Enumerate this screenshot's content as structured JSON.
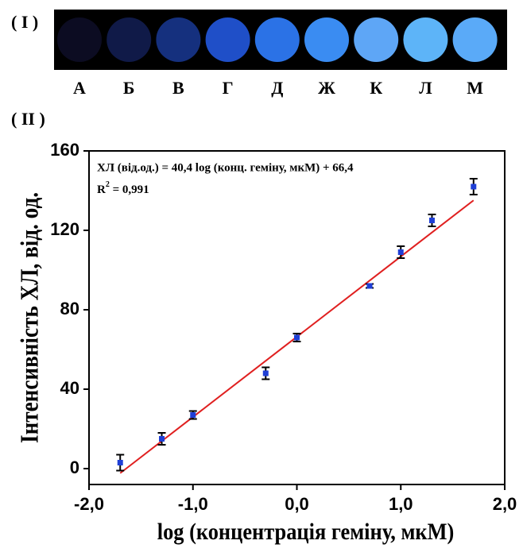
{
  "photo": {
    "label": "( I )",
    "wells": [
      {
        "label": "А",
        "color": "#0c0c22"
      },
      {
        "label": "Б",
        "color": "#101a48"
      },
      {
        "label": "В",
        "color": "#15307e"
      },
      {
        "label": "Г",
        "color": "#1f4fc8"
      },
      {
        "label": "Д",
        "color": "#2b72e6"
      },
      {
        "label": "Ж",
        "color": "#3a8cf2"
      },
      {
        "label": "К",
        "color": "#5ea6f6"
      },
      {
        "label": "Л",
        "color": "#5db4f8"
      },
      {
        "label": "М",
        "color": "#5aaaf8"
      }
    ]
  },
  "chart_data": {
    "type": "scatter",
    "label": "( II )",
    "x_label": "log (концентрація геміну, мкМ)",
    "y_label": "Інтенсивність ХЛ, від. од.",
    "equation": "ХЛ (від.од.) = 40,4 log (конц. геміну, мкМ) + 66,4",
    "r2": {
      "base": "R",
      "sup": "2",
      "rest": " = 0,991"
    },
    "xlim": [
      -2,
      2
    ],
    "xticks": [
      {
        "value": -2,
        "label": "-2,0"
      },
      {
        "value": -1,
        "label": "-1,0"
      },
      {
        "value": 0,
        "label": "0,0"
      },
      {
        "value": 1,
        "label": "1,0"
      },
      {
        "value": 2,
        "label": "2,0"
      }
    ],
    "ylim": [
      -8,
      160
    ],
    "yticks": [
      0,
      40,
      80,
      120,
      160
    ],
    "series": [
      {
        "color": "#1f3fd6",
        "error_color": "#000000",
        "x": [
          -1.7,
          -1.3,
          -1.0,
          -0.3,
          0.0,
          0.7,
          1.0,
          1.3,
          1.7
        ],
        "values": [
          3,
          15,
          27,
          48,
          66,
          92,
          109,
          125,
          142
        ],
        "errors": [
          4,
          3,
          2,
          3,
          2,
          1,
          3,
          3,
          4
        ]
      }
    ],
    "fit_line": {
      "color": "#e02020",
      "x": [
        -1.7,
        1.7
      ],
      "values": [
        -2.3,
        135.1
      ]
    }
  }
}
